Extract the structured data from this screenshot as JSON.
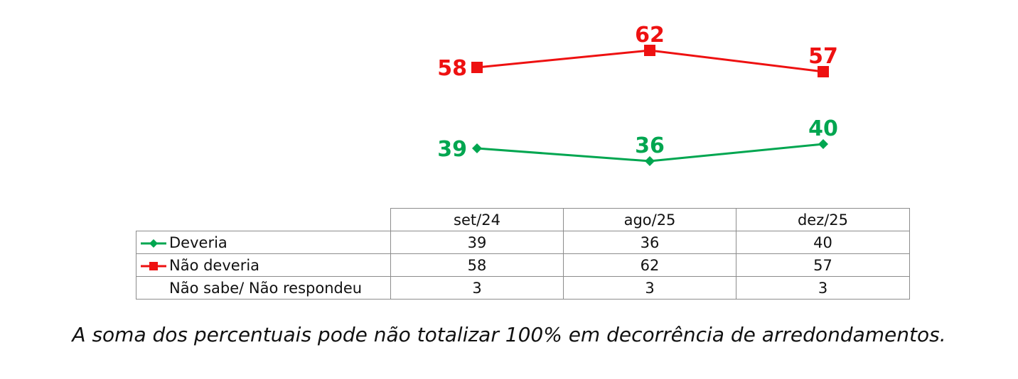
{
  "chart_data": {
    "type": "line",
    "categories": [
      "set/24",
      "ago/25",
      "dez/25"
    ],
    "series": [
      {
        "name": "Deveria",
        "values": [
          39,
          36,
          40
        ],
        "color": "#00a650",
        "marker": "diamond"
      },
      {
        "name": "Não deveria",
        "values": [
          58,
          62,
          57
        ],
        "color": "#ee1111",
        "marker": "square"
      },
      {
        "name": "Não sabe/ Não respondeu",
        "values": [
          3,
          3,
          3
        ],
        "plotted": false
      }
    ]
  },
  "footnote": "A soma dos percentuais pode não totalizar 100% em decorrência de arredondamentos."
}
